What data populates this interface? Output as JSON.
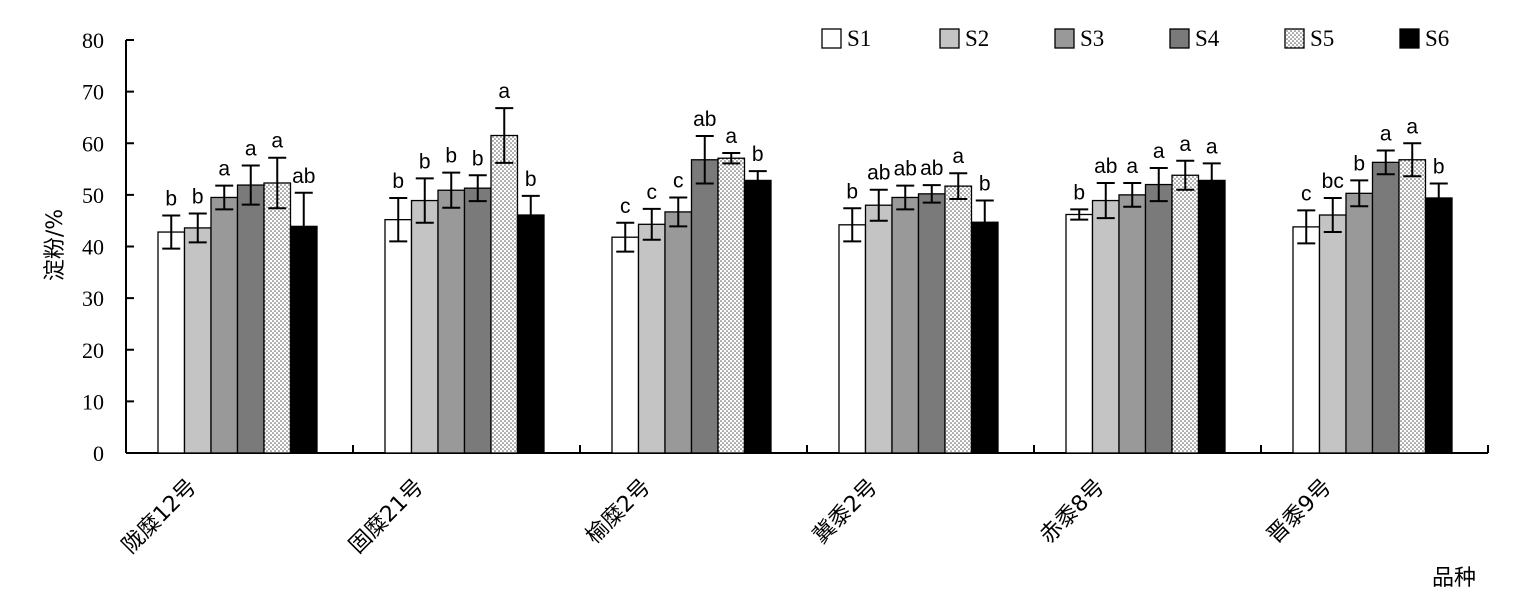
{
  "chart_data": {
    "type": "bar",
    "title": "",
    "ylabel": "淀粉/%",
    "xlabel": "品种",
    "ylim": [
      0,
      80
    ],
    "yticks": [
      "0",
      "10",
      "20",
      "30",
      "40",
      "50",
      "60",
      "70",
      "80"
    ],
    "grid": false,
    "legend_position": "top-right",
    "categories": [
      "陇糜12号",
      "固糜21号",
      "榆糜2号",
      "冀黍2号",
      "赤黍8号",
      "晋黍9号"
    ],
    "series": [
      {
        "name": "S1",
        "fill": "white",
        "values": [
          42.8,
          45.2,
          41.8,
          44.2,
          46.2,
          43.8
        ],
        "errors": [
          3.2,
          4.2,
          2.8,
          3.2,
          1.0,
          3.2
        ],
        "labels": [
          "b",
          "b",
          "c",
          "b",
          "b",
          "c"
        ]
      },
      {
        "name": "S2",
        "fill": "lightgray",
        "values": [
          43.6,
          48.9,
          44.3,
          48.0,
          48.9,
          46.1
        ],
        "errors": [
          2.8,
          4.3,
          3.0,
          3.0,
          3.4,
          3.3
        ],
        "labels": [
          "b",
          "b",
          "c",
          "ab",
          "ab",
          "bc"
        ]
      },
      {
        "name": "S3",
        "fill": "gray",
        "values": [
          49.5,
          50.9,
          46.7,
          49.5,
          50.0,
          50.3
        ],
        "errors": [
          2.3,
          3.4,
          2.8,
          2.3,
          2.3,
          2.5
        ],
        "labels": [
          "a",
          "b",
          "c",
          "ab",
          "a",
          "b"
        ]
      },
      {
        "name": "S4",
        "fill": "darkgray",
        "values": [
          51.9,
          51.3,
          56.8,
          50.2,
          52.0,
          56.3
        ],
        "errors": [
          3.8,
          2.5,
          4.6,
          1.7,
          3.2,
          2.3
        ],
        "labels": [
          "a",
          "b",
          "ab",
          "ab",
          "a",
          "a"
        ]
      },
      {
        "name": "S5",
        "fill": "dotted",
        "values": [
          52.3,
          61.5,
          57.1,
          51.7,
          53.8,
          56.8
        ],
        "errors": [
          4.9,
          5.3,
          1.0,
          2.5,
          2.8,
          3.2
        ],
        "labels": [
          "a",
          "a",
          "a",
          "a",
          "a",
          "a"
        ]
      },
      {
        "name": "S6",
        "fill": "black",
        "values": [
          43.9,
          46.1,
          52.8,
          44.7,
          52.8,
          49.4
        ],
        "errors": [
          6.5,
          3.7,
          1.8,
          4.2,
          3.3,
          2.8
        ],
        "labels": [
          "ab",
          "b",
          "b",
          "b",
          "a",
          "b"
        ]
      }
    ]
  },
  "colors": {
    "S1": "#ffffff",
    "S2": "#c4c4c4",
    "S3": "#999999",
    "S4": "#7a7a7a",
    "S5": "#ffffff",
    "S6": "#000000"
  }
}
